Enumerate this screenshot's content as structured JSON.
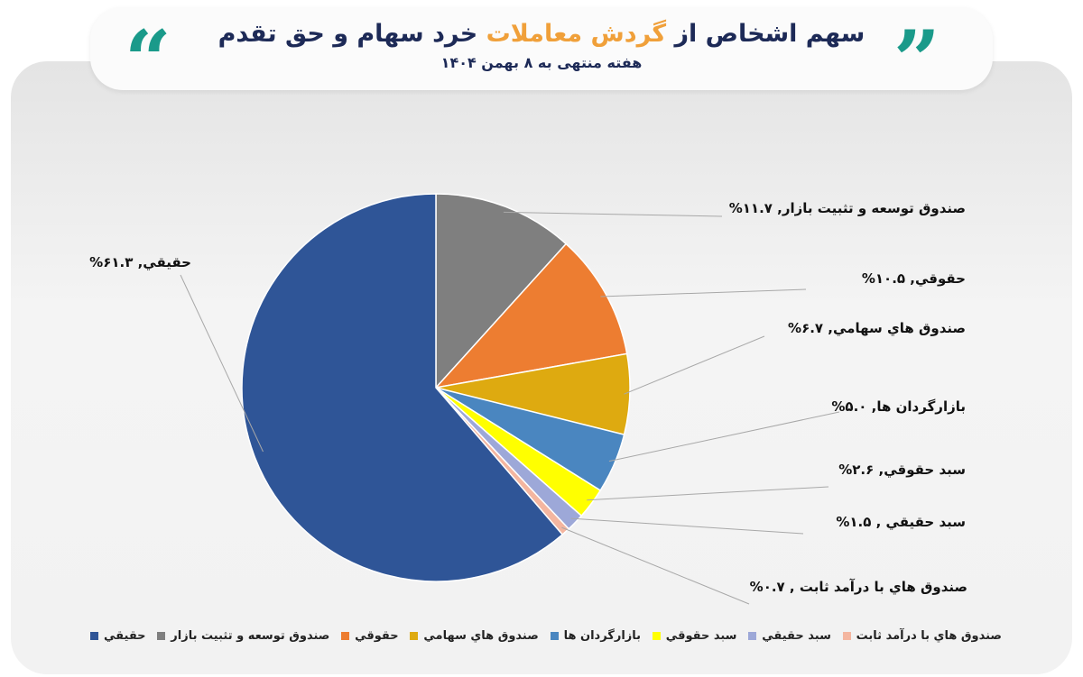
{
  "header": {
    "title_part1": "سهم اشخاص از",
    "title_highlight": "گردش معاملات",
    "title_part2": "خرد سهام و حق تقدم",
    "subtitle": "هفته منتهی به ۸ بهمن ۱۴۰۴",
    "quote_left": "“",
    "quote_right": "”",
    "accent_color": "#f0a03a",
    "quote_color": "#1a9a8a"
  },
  "chart_data": {
    "type": "pie",
    "start": "top",
    "direction": "clockwise",
    "legend_position": "bottom",
    "slices": [
      {
        "name": "صندوق توسعه و تثبيت بازار",
        "value": 11.7,
        "label": "صندوق توسعه و تثبيت بازار, ۱۱.۷%",
        "color": "#7f7f7f"
      },
      {
        "name": "حقوقي",
        "value": 10.5,
        "label": "حقوقي, ۱۰.۵%",
        "color": "#ed7d31"
      },
      {
        "name": "صندوق هاي سهامي",
        "value": 6.7,
        "label": "صندوق هاي سهامي, ۶.۷%",
        "color": "#deaa10"
      },
      {
        "name": "بازارگردان ها",
        "value": 5.0,
        "label": "بازارگردان ها, ۵.۰%",
        "color": "#4a86c0"
      },
      {
        "name": "سبد حقوقي",
        "value": 2.6,
        "label": "سبد حقوقي, ۲.۶%",
        "color": "#ffff00"
      },
      {
        "name": "سبد حقيقي",
        "value": 1.5,
        "label": "سبد حقيقي , ۱.۵%",
        "color": "#9da8d8"
      },
      {
        "name": "صندوق هاي با درآمد ثابت",
        "value": 0.7,
        "label": "صندوق هاي با درآمد ثابت , ۰.۷%",
        "color": "#f4b6a0"
      },
      {
        "name": "حقيقي",
        "value": 61.3,
        "label": "حقيقي, ۶۱.۳%",
        "color": "#2f5597"
      }
    ],
    "legend_order": [
      "حقيقي",
      "صندوق توسعه و تثبيت بازار",
      "حقوقي",
      "صندوق هاي سهامي",
      "بازارگردان ها",
      "سبد حقوقي",
      "سبد حقيقي",
      "صندوق هاي با درآمد ثابت"
    ]
  }
}
